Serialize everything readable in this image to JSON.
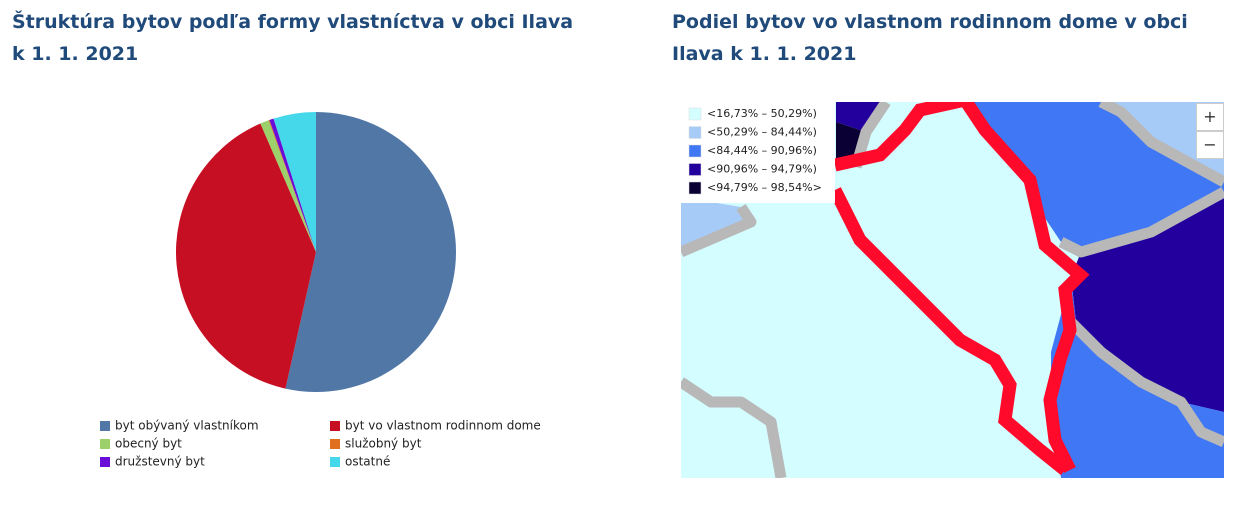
{
  "chart_data": {
    "type": "pie",
    "title": "Štruktúra bytov podľa formy vlastníctva v obci Ilava k 1. 1. 2021",
    "series": [
      {
        "name": "byt obývaný vlastníkom",
        "color": "#5077a6",
        "values": [
          53.5
        ]
      },
      {
        "name": "byt vo vlastnom rodinnom dome",
        "color": "#c70f23",
        "values": [
          40.0
        ]
      },
      {
        "name": "obecný byt",
        "color": "#9bd06a",
        "values": [
          1.0
        ]
      },
      {
        "name": "služobný byt",
        "color": "#e07020",
        "values": [
          0.1
        ]
      },
      {
        "name": "družstevný byt",
        "color": "#6a0dd6",
        "values": [
          0.5
        ]
      },
      {
        "name": "ostatné",
        "color": "#45d8ea",
        "values": [
          4.9
        ]
      }
    ]
  },
  "map": {
    "title": "Podiel bytov vo vlastnom rodinnom dome v obci Ilava k 1. 1. 2021",
    "legend": [
      {
        "label": "<16,73% – 50,29%)",
        "color": "#d4fdff"
      },
      {
        "label": "<50,29% – 84,44%)",
        "color": "#a7cbf7"
      },
      {
        "label": "<84,44% – 90,96%)",
        "color": "#3f77f5"
      },
      {
        "label": "<90,96% – 94,79%)",
        "color": "#23009e"
      },
      {
        "label": "<94,79% – 98,54%>",
        "color": "#0a0034"
      }
    ],
    "zoom_in": "+",
    "zoom_out": "−"
  }
}
